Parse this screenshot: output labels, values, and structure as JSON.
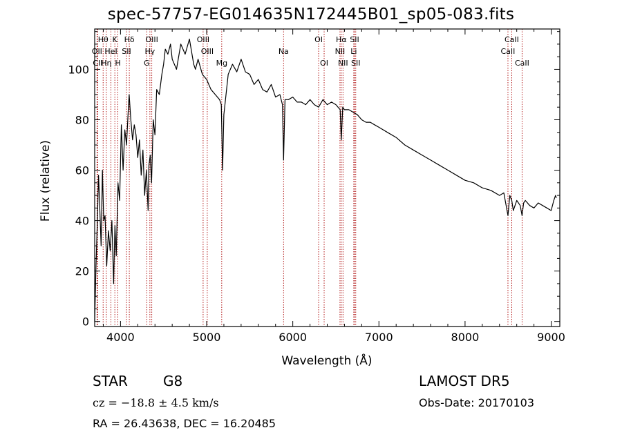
{
  "header": {
    "title": "spec-57757-EG014635N172445B01_sp05-083.fits"
  },
  "footer": {
    "object_class": "STAR",
    "subclass": "G8",
    "survey": "LAMOST DR5",
    "cz_text": "cz = −18.8 ± 4.5 km/s",
    "obs_date": "Obs-Date: 20170103",
    "radec": "RA =  26.43638, DEC =  16.20485"
  },
  "chart_data": {
    "type": "line",
    "xlabel": "Wavelength (Å)",
    "ylabel": "Flux (relative)",
    "xlim": [
      3700,
      9100
    ],
    "ylim": [
      -2,
      116
    ],
    "xticks": [
      4000,
      5000,
      6000,
      7000,
      8000,
      9000
    ],
    "yticks": [
      0,
      20,
      40,
      60,
      80,
      100
    ],
    "grid": false,
    "legend": "none",
    "line_color": "#000000",
    "marker_color": "#aa0000",
    "spectral_lines": [
      {
        "label": "Hθ",
        "wavelength": 3798,
        "row": 0
      },
      {
        "label": "K",
        "wavelength": 3934,
        "row": 0
      },
      {
        "label": "Hδ",
        "wavelength": 4102,
        "row": 0
      },
      {
        "label": "OIII",
        "wavelength": 4363,
        "row": 0
      },
      {
        "label": "OIII",
        "wavelength": 4959,
        "row": 0
      },
      {
        "label": "OI",
        "wavelength": 6300,
        "row": 0
      },
      {
        "label": "Hα",
        "wavelength": 6563,
        "row": 0
      },
      {
        "label": "SII",
        "wavelength": 6717,
        "row": 0
      },
      {
        "label": "CaII",
        "wavelength": 8542,
        "row": 0
      },
      {
        "label": "OII",
        "wavelength": 3727,
        "row": 1
      },
      {
        "label": "HeI",
        "wavelength": 3889,
        "row": 1
      },
      {
        "label": "SII",
        "wavelength": 4069,
        "row": 1
      },
      {
        "label": "Hγ",
        "wavelength": 4341,
        "row": 1
      },
      {
        "label": "OIII",
        "wavelength": 5007,
        "row": 1
      },
      {
        "label": "Na",
        "wavelength": 5893,
        "row": 1
      },
      {
        "label": "NII",
        "wavelength": 6548,
        "row": 1
      },
      {
        "label": "Li",
        "wavelength": 6708,
        "row": 1
      },
      {
        "label": "CaII",
        "wavelength": 8498,
        "row": 1
      },
      {
        "label": "CII",
        "wavelength": 3735,
        "row": 2
      },
      {
        "label": "Hη",
        "wavelength": 3835,
        "row": 2
      },
      {
        "label": "H",
        "wavelength": 3969,
        "row": 2
      },
      {
        "label": "G",
        "wavelength": 4304,
        "row": 2
      },
      {
        "label": "Mg",
        "wavelength": 5175,
        "row": 2
      },
      {
        "label": "OI",
        "wavelength": 6364,
        "row": 2
      },
      {
        "label": "NII",
        "wavelength": 6583,
        "row": 2
      },
      {
        "label": "SII",
        "wavelength": 6731,
        "row": 2
      },
      {
        "label": "CaII",
        "wavelength": 8662,
        "row": 2
      }
    ],
    "series": [
      {
        "x": [
          3700,
          3715,
          3730,
          3745,
          3760,
          3775,
          3790,
          3805,
          3820,
          3840,
          3860,
          3880,
          3900,
          3920,
          3935,
          3950,
          3970,
          3990,
          4010,
          4030,
          4050,
          4070,
          4090,
          4100,
          4120,
          4140,
          4160,
          4180,
          4200,
          4220,
          4240,
          4260,
          4280,
          4300,
          4320,
          4330,
          4345,
          4360,
          4380,
          4400,
          4420,
          4450,
          4480,
          4500,
          4520,
          4550,
          4580,
          4600,
          4650,
          4700,
          4750,
          4800,
          4850,
          4870,
          4900,
          4950,
          5000,
          5050,
          5100,
          5150,
          5170,
          5185,
          5200,
          5250,
          5300,
          5350,
          5400,
          5450,
          5500,
          5550,
          5600,
          5650,
          5700,
          5750,
          5800,
          5850,
          5880,
          5893,
          5910,
          5950,
          6000,
          6050,
          6100,
          6150,
          6200,
          6250,
          6300,
          6350,
          6400,
          6450,
          6500,
          6550,
          6563,
          6580,
          6600,
          6650,
          6700,
          6750,
          6800,
          6850,
          6900,
          6950,
          7000,
          7100,
          7200,
          7300,
          7400,
          7500,
          7600,
          7700,
          7800,
          7900,
          8000,
          8100,
          8200,
          8300,
          8400,
          8450,
          8498,
          8520,
          8542,
          8560,
          8600,
          8640,
          8662,
          8680,
          8700,
          8750,
          8800,
          8850,
          8900,
          8950,
          9000,
          9030,
          9050,
          9060
        ],
        "y": [
          0,
          22,
          38,
          58,
          44,
          30,
          60,
          40,
          42,
          22,
          36,
          28,
          40,
          15,
          38,
          26,
          55,
          48,
          78,
          60,
          76,
          70,
          84,
          90,
          80,
          72,
          78,
          74,
          65,
          72,
          58,
          68,
          50,
          60,
          44,
          62,
          66,
          55,
          80,
          74,
          92,
          90,
          98,
          102,
          108,
          106,
          110,
          104,
          100,
          110,
          106,
          112,
          102,
          100,
          104,
          98,
          96,
          92,
          90,
          88,
          86,
          60,
          82,
          98,
          102,
          99,
          104,
          99,
          98,
          94,
          96,
          92,
          91,
          94,
          89,
          90,
          86,
          64,
          88,
          88,
          89,
          87,
          87,
          86,
          88,
          86,
          85,
          88,
          86,
          87,
          86,
          84,
          72,
          85,
          84,
          84,
          83,
          82,
          80,
          79,
          79,
          78,
          77,
          75,
          73,
          70,
          68,
          66,
          64,
          62,
          60,
          58,
          56,
          55,
          53,
          52,
          50,
          51,
          42,
          50,
          48,
          44,
          48,
          46,
          42,
          47,
          48,
          46,
          45,
          47,
          46,
          45,
          44,
          48,
          50,
          49
        ]
      }
    ]
  }
}
